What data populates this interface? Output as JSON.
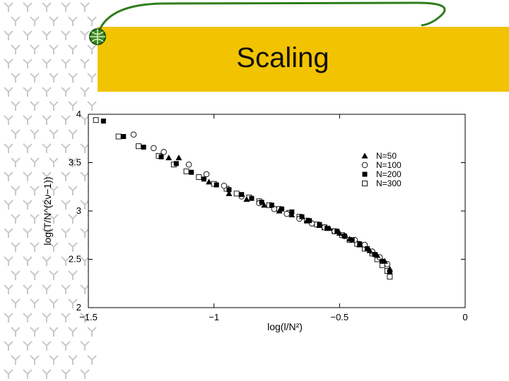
{
  "slide": {
    "title": "Scaling",
    "colors": {
      "banner": "#f2c300",
      "curve": "#2f7d1a",
      "pattern": "#c9c9c9"
    },
    "icons": [
      "globe-bullet-icon"
    ]
  },
  "chart_data": {
    "type": "scatter",
    "xlabel": "log(l/N²)",
    "ylabel": "log(T/N^(2ν−1))",
    "xlim": [
      -1.5,
      0
    ],
    "ylim": [
      2,
      4
    ],
    "xticks": [
      -1.5,
      -1,
      -0.5,
      0
    ],
    "xtick_labels": [
      "−1.5",
      "−1",
      "−0.5",
      "0"
    ],
    "yticks": [
      2,
      2.5,
      3,
      3.5,
      4
    ],
    "ytick_labels": [
      "2",
      "2.5",
      "3",
      "3.5",
      "4"
    ],
    "grid": false,
    "legend": "top-right",
    "series": [
      {
        "name": "N=50",
        "marker": "triangle",
        "x": [
          -1.18,
          -1.14,
          -1.02,
          -0.94,
          -0.87,
          -0.8,
          -0.74,
          -0.69,
          -0.63,
          -0.58,
          -0.54,
          -0.5,
          -0.46,
          -0.42,
          -0.38,
          -0.35,
          -0.32,
          -0.3
        ],
        "y": [
          3.55,
          3.55,
          3.3,
          3.18,
          3.12,
          3.06,
          3.0,
          2.96,
          2.9,
          2.85,
          2.82,
          2.77,
          2.71,
          2.65,
          2.59,
          2.54,
          2.48,
          2.4
        ]
      },
      {
        "name": "N=100",
        "marker": "circle",
        "x": [
          -1.32,
          -1.24,
          -1.2,
          -1.1,
          -1.03,
          -0.96,
          -0.89,
          -0.82,
          -0.76,
          -0.71,
          -0.66,
          -0.61,
          -0.56,
          -0.52,
          -0.48,
          -0.44,
          -0.4,
          -0.37,
          -0.34,
          -0.31
        ],
        "y": [
          3.79,
          3.65,
          3.61,
          3.48,
          3.38,
          3.26,
          3.15,
          3.08,
          3.02,
          2.97,
          2.92,
          2.87,
          2.83,
          2.79,
          2.74,
          2.7,
          2.65,
          2.58,
          2.52,
          2.45
        ]
      },
      {
        "name": "N=200",
        "marker": "square",
        "x": [
          -1.44,
          -1.36,
          -1.28,
          -1.21,
          -1.15,
          -1.09,
          -1.04,
          -0.99,
          -0.94,
          -0.89,
          -0.85,
          -0.81,
          -0.77,
          -0.73,
          -0.69,
          -0.65,
          -0.62,
          -0.58,
          -0.55,
          -0.51,
          -0.48,
          -0.45,
          -0.42,
          -0.39,
          -0.36,
          -0.33,
          -0.3
        ],
        "y": [
          3.93,
          3.77,
          3.66,
          3.56,
          3.49,
          3.4,
          3.33,
          3.27,
          3.22,
          3.17,
          3.13,
          3.09,
          3.06,
          3.02,
          2.99,
          2.94,
          2.9,
          2.86,
          2.82,
          2.79,
          2.74,
          2.7,
          2.66,
          2.61,
          2.55,
          2.48,
          2.37
        ]
      },
      {
        "name": "N=300",
        "marker": "open-square",
        "x": [
          -1.47,
          -1.38,
          -1.3,
          -1.22,
          -1.16,
          -1.11,
          -1.06,
          -1.0,
          -0.95,
          -0.91,
          -0.86,
          -0.82,
          -0.78,
          -0.74,
          -0.7,
          -0.66,
          -0.63,
          -0.59,
          -0.56,
          -0.52,
          -0.49,
          -0.46,
          -0.43,
          -0.4,
          -0.37,
          -0.35,
          -0.33,
          -0.31,
          -0.3
        ],
        "y": [
          3.94,
          3.77,
          3.67,
          3.57,
          3.48,
          3.41,
          3.35,
          3.28,
          3.23,
          3.18,
          3.14,
          3.1,
          3.06,
          3.02,
          2.98,
          2.94,
          2.9,
          2.86,
          2.83,
          2.79,
          2.75,
          2.7,
          2.66,
          2.61,
          2.56,
          2.5,
          2.44,
          2.38,
          2.32
        ]
      }
    ]
  }
}
